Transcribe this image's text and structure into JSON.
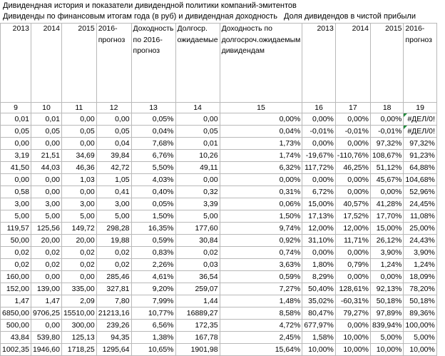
{
  "titles": {
    "line1": "Дивидендная история и показатели дивидендной политики компаний-эмитентов",
    "line2": "Дивиденды по финансовым итогам года (в руб) и дивидендная доходность",
    "line3": "Доля дивидендов в чистой прибыли"
  },
  "headers": [
    "2013",
    "2014",
    "2015",
    "2016-прогноз",
    "Доходность по 2016-прогноз",
    "Долгоср. ожидаемые",
    "Доходность по долгосроч.ожидаемым дивидендам",
    "2013",
    "2014",
    "2015",
    "2016-прогноз"
  ],
  "column_numbers": [
    "9",
    "10",
    "11",
    "12",
    "13",
    "14",
    "15",
    "16",
    "17",
    "18",
    "19"
  ],
  "rows": [
    [
      "0,01",
      "0,01",
      "0,00",
      "0,00",
      "0,05%",
      "0,00",
      "0,00%",
      "0,00%",
      "0,00%",
      "0,00%",
      "#ДЕЛ/0!"
    ],
    [
      "0,05",
      "0,05",
      "0,05",
      "0,05",
      "0,04%",
      "0,05",
      "0,04%",
      "-0,01%",
      "-0,01%",
      "-0,01%",
      "#ДЕЛ/0!"
    ],
    [
      "0,00",
      "0,00",
      "0,00",
      "0,04",
      "7,68%",
      "0,01",
      "1,73%",
      "0,00%",
      "0,00%",
      "97,32%",
      "97,32%"
    ],
    [
      "3,19",
      "21,51",
      "34,69",
      "39,84",
      "6,76%",
      "10,26",
      "1,74%",
      "-19,67%",
      "-110,76%",
      "108,67%",
      "91,23%"
    ],
    [
      "41,50",
      "44,03",
      "46,36",
      "42,72",
      "5,50%",
      "49,11",
      "6,32%",
      "117,72%",
      "46,25%",
      "51,12%",
      "64,88%"
    ],
    [
      "0,00",
      "0,00",
      "1,03",
      "1,05",
      "4,03%",
      "0,00",
      "0,00%",
      "0,00%",
      "0,00%",
      "45,67%",
      "104,68%"
    ],
    [
      "0,58",
      "0,00",
      "0,00",
      "0,41",
      "0,40%",
      "0,32",
      "0,31%",
      "6,72%",
      "0,00%",
      "0,00%",
      "52,96%"
    ],
    [
      "3,00",
      "3,00",
      "3,00",
      "3,00",
      "0,05%",
      "3,39",
      "0,06%",
      "15,00%",
      "40,57%",
      "41,28%",
      "24,45%"
    ],
    [
      "5,00",
      "5,00",
      "5,00",
      "5,00",
      "1,50%",
      "5,00",
      "1,50%",
      "17,13%",
      "17,52%",
      "17,70%",
      "11,08%"
    ],
    [
      "119,57",
      "125,56",
      "149,72",
      "298,28",
      "16,35%",
      "177,60",
      "9,74%",
      "12,00%",
      "12,00%",
      "15,00%",
      "25,00%"
    ],
    [
      "50,00",
      "20,00",
      "20,00",
      "19,88",
      "0,59%",
      "30,84",
      "0,92%",
      "31,10%",
      "11,71%",
      "26,12%",
      "24,43%"
    ],
    [
      "0,02",
      "0,02",
      "0,02",
      "0,02",
      "0,83%",
      "0,02",
      "0,74%",
      "0,00%",
      "0,00%",
      "3,90%",
      "3,90%"
    ],
    [
      "0,02",
      "0,02",
      "0,02",
      "0,02",
      "2,26%",
      "0,03",
      "3,63%",
      "1,80%",
      "0,79%",
      "1,24%",
      "1,24%"
    ],
    [
      "160,00",
      "0,00",
      "0,00",
      "285,46",
      "4,61%",
      "36,54",
      "0,59%",
      "8,29%",
      "0,00%",
      "0,00%",
      "18,09%"
    ],
    [
      "152,00",
      "139,00",
      "335,00",
      "327,81",
      "9,20%",
      "259,07",
      "7,27%",
      "50,40%",
      "128,61%",
      "92,13%",
      "78,20%"
    ],
    [
      "1,47",
      "1,47",
      "2,09",
      "7,80",
      "7,99%",
      "1,44",
      "1,48%",
      "35,02%",
      "-60,31%",
      "50,18%",
      "50,18%"
    ],
    [
      "6850,00",
      "9706,25",
      "15510,00",
      "21213,16",
      "10,77%",
      "16889,27",
      "8,58%",
      "80,47%",
      "79,27%",
      "97,89%",
      "89,36%"
    ],
    [
      "500,00",
      "0,00",
      "300,00",
      "239,26",
      "6,56%",
      "172,35",
      "4,72%",
      "677,97%",
      "0,00%",
      "839,94%",
      "100,00%"
    ],
    [
      "43,84",
      "539,80",
      "125,13",
      "94,35",
      "1,38%",
      "167,78",
      "2,45%",
      "1,58%",
      "10,00%",
      "5,00%",
      "5,00%"
    ],
    [
      "1002,35",
      "1946,60",
      "1718,25",
      "1295,64",
      "10,65%",
      "1901,98",
      "15,64%",
      "10,00%",
      "10,00%",
      "10,00%",
      "10,00%"
    ]
  ]
}
